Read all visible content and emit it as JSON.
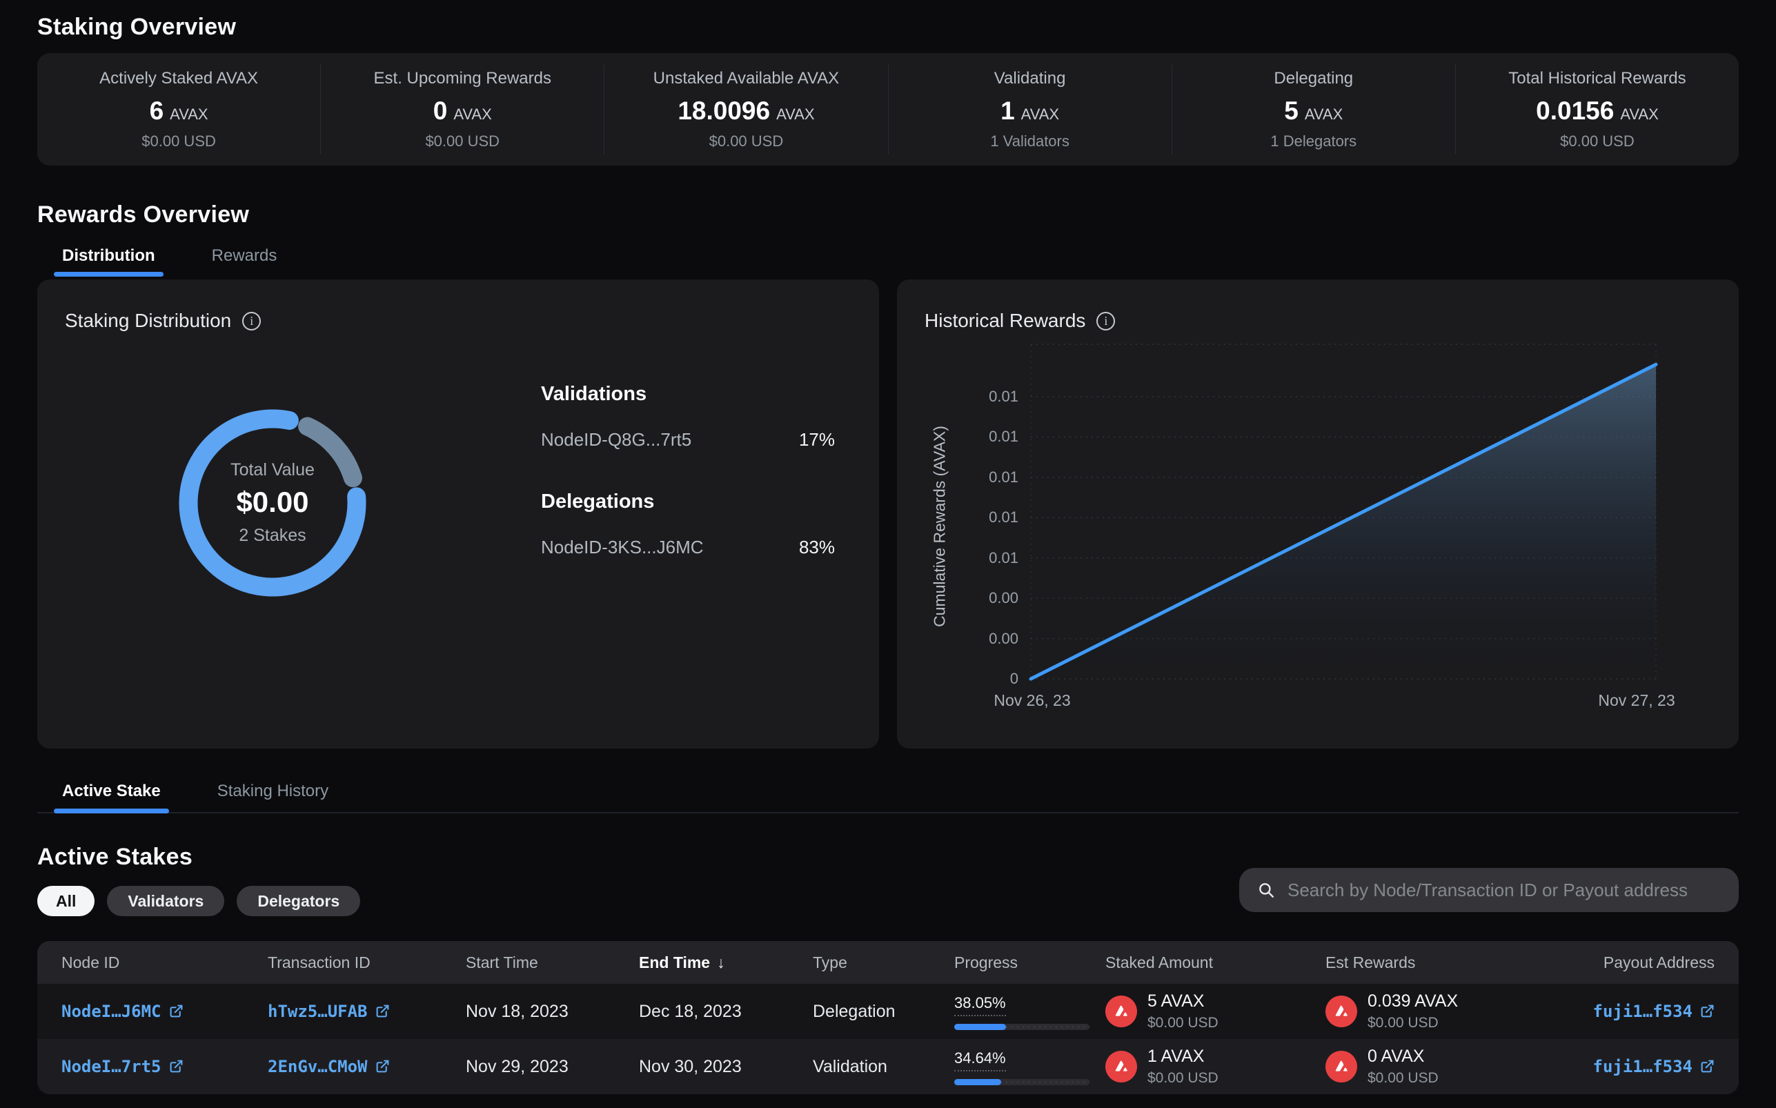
{
  "staking_overview": {
    "title": "Staking Overview",
    "stats": [
      {
        "label": "Actively Staked AVAX",
        "value": "6",
        "unit": "AVAX",
        "sub": "$0.00 USD"
      },
      {
        "label": "Est. Upcoming Rewards",
        "value": "0",
        "unit": "AVAX",
        "sub": "$0.00 USD"
      },
      {
        "label": "Unstaked Available AVAX",
        "value": "18.0096",
        "unit": "AVAX",
        "sub": "$0.00 USD"
      },
      {
        "label": "Validating",
        "value": "1",
        "unit": "AVAX",
        "sub": "1 Validators"
      },
      {
        "label": "Delegating",
        "value": "5",
        "unit": "AVAX",
        "sub": "1 Delegators"
      },
      {
        "label": "Total Historical Rewards",
        "value": "0.0156",
        "unit": "AVAX",
        "sub": "$0.00 USD"
      }
    ]
  },
  "rewards_overview": {
    "title": "Rewards Overview",
    "tabs": [
      {
        "label": "Distribution"
      },
      {
        "label": "Rewards"
      }
    ]
  },
  "staking_distribution": {
    "title": "Staking Distribution",
    "center": {
      "label": "Total Value",
      "value": "$0.00",
      "sub": "2 Stakes"
    },
    "validations_title": "Validations",
    "validation_row": {
      "node": "NodeID-Q8G...7rt5",
      "pct": "17%"
    },
    "delegations_title": "Delegations",
    "delegation_row": {
      "node": "NodeID-3KS...J6MC",
      "pct": "83%"
    }
  },
  "historical_rewards": {
    "title": "Historical Rewards"
  },
  "chart_data": [
    {
      "type": "pie",
      "title": "Staking Distribution",
      "center_label": "Total Value",
      "center_value": "$0.00",
      "center_sub": "2 Stakes",
      "slices": [
        {
          "series": "Validations",
          "label": "NodeID-Q8G...7rt5",
          "value": 17,
          "color": "#7f9cb8"
        },
        {
          "series": "Delegations",
          "label": "NodeID-3KS...J6MC",
          "value": 83,
          "color": "#5ea5f3"
        }
      ]
    },
    {
      "type": "area",
      "title": "Historical Rewards",
      "ylabel": "Cumulative Rewards (AVAX)",
      "y_ticks": [
        "0.01",
        "0.01",
        "0.01",
        "0.01",
        "0.01",
        "0.00",
        "0.00",
        "0"
      ],
      "x_ticks": [
        "Nov 26, 23",
        "Nov 27, 23"
      ],
      "x": [
        "Nov 26, 23",
        "Nov 27, 23"
      ],
      "y": [
        0,
        0.0156
      ],
      "ylim": [
        0,
        0.01664
      ],
      "grid": "dotted horizontal",
      "line_color": "#3f9bf7"
    }
  ],
  "stake_tabs": [
    {
      "label": "Active Stake"
    },
    {
      "label": "Staking History"
    }
  ],
  "active_stakes": {
    "title": "Active Stakes",
    "filters": [
      {
        "label": "All"
      },
      {
        "label": "Validators"
      },
      {
        "label": "Delegators"
      }
    ],
    "search_placeholder": "Search by Node/Transaction ID or Payout address",
    "table": {
      "columns": [
        "Node ID",
        "Transaction ID",
        "Start Time",
        "End Time",
        "Type",
        "Progress",
        "Staked Amount",
        "Est Rewards",
        "Payout Address"
      ],
      "sort_column": "End Time",
      "sort_direction": "desc",
      "rows": [
        {
          "node_id": "NodeI…J6MC",
          "tx_id": "hTwz5…UFAB",
          "start": "Nov 18, 2023",
          "end": "Dec 18, 2023",
          "type": "Delegation",
          "progress_pct": "38.05%",
          "progress_value": 38.05,
          "staked": "5 AVAX",
          "staked_usd": "$0.00 USD",
          "rewards": "0.039 AVAX",
          "rewards_usd": "$0.00 USD",
          "payout": "fuji1…f534"
        },
        {
          "node_id": "NodeI…7rt5",
          "tx_id": "2EnGv…CMoW",
          "start": "Nov 29, 2023",
          "end": "Nov 30, 2023",
          "type": "Validation",
          "progress_pct": "34.64%",
          "progress_value": 34.64,
          "staked": "1 AVAX",
          "staked_usd": "$0.00 USD",
          "rewards": "0 AVAX",
          "rewards_usd": "$0.00 USD",
          "payout": "fuji1…f534"
        }
      ]
    }
  },
  "colors": {
    "accent_blue": "#3e8cf5",
    "link_blue": "#5ea9f2",
    "line_blue": "#3f9bf7",
    "donut_delegations": "#5ea5f3",
    "donut_validations": "#7f9cb8",
    "avax_red": "#e84142"
  }
}
